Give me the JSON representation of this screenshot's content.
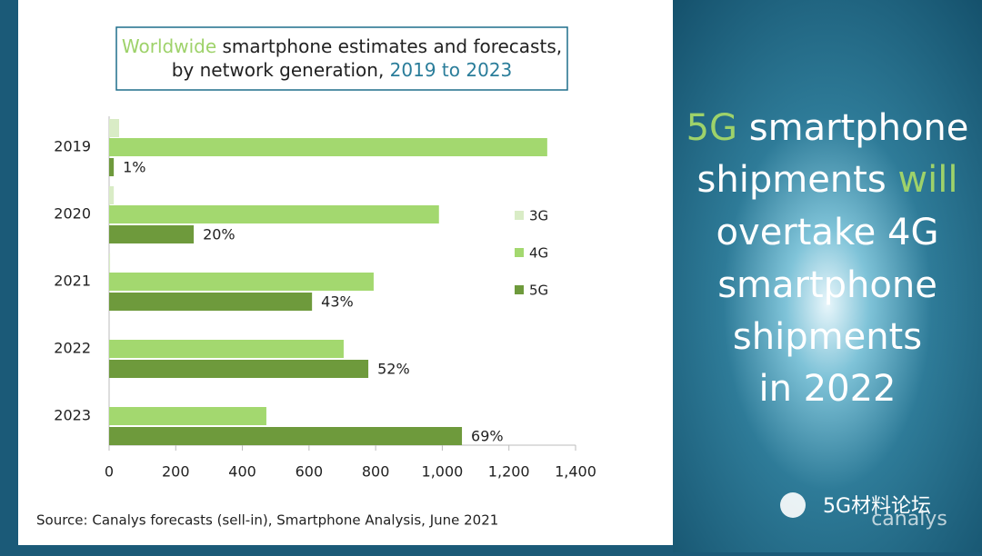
{
  "chart_data": {
    "type": "hbar",
    "title_parts": [
      "Worldwide",
      "smartphone estimates and forecasts,",
      "by network generation,",
      "2019 to 2023"
    ],
    "categories": [
      "2019",
      "2020",
      "2021",
      "2022",
      "2023"
    ],
    "series": [
      {
        "name": "3G",
        "color": "#d9ecc6",
        "values": [
          30,
          14,
          3,
          0,
          0
        ]
      },
      {
        "name": "4G",
        "color": "#a3d86f",
        "values": [
          1315,
          990,
          794,
          704,
          472
        ]
      },
      {
        "name": "5G",
        "color": "#6e9a3c",
        "values": [
          14,
          254,
          609,
          778,
          1059
        ],
        "share_labels": [
          "1%",
          "20%",
          "43%",
          "52%",
          "69%"
        ]
      }
    ],
    "xlim": [
      0,
      1400
    ],
    "xticks": [
      0,
      200,
      400,
      600,
      800,
      {
        "value": 1000,
        "label": "1,000"
      },
      {
        "value": 1200,
        "label": "1,200"
      },
      {
        "value": 1400,
        "label": "1,400"
      }
    ],
    "legend": "right",
    "source": "Source: Canalys forecasts (sell-in), Smartphone Analysis, June 2021"
  },
  "headline": [
    "5G",
    "smartphone",
    "shipments",
    "will",
    "overtake 4G",
    "smartphone",
    "shipments",
    "in 2022"
  ],
  "watermark": "5G材料论坛",
  "logo": "canalys"
}
